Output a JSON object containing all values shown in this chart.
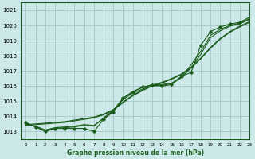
{
  "title": "Graphe pression niveau de la mer (hPa)",
  "bg_color": "#cce8e8",
  "grid_color": "#aacccc",
  "line_color": "#1a5c1a",
  "xlim": [
    -0.5,
    23
  ],
  "ylim": [
    1012.5,
    1021.5
  ],
  "yticks": [
    1013,
    1014,
    1015,
    1016,
    1017,
    1018,
    1019,
    1020,
    1021
  ],
  "xticks": [
    0,
    1,
    2,
    3,
    4,
    5,
    6,
    7,
    8,
    9,
    10,
    11,
    12,
    13,
    14,
    15,
    16,
    17,
    18,
    19,
    20,
    21,
    22,
    23
  ],
  "hours": [
    0,
    1,
    2,
    3,
    4,
    5,
    6,
    7,
    8,
    9,
    10,
    11,
    12,
    13,
    14,
    15,
    16,
    17,
    18,
    19,
    20,
    21,
    22,
    23
  ],
  "pressure_main": [
    1013.6,
    1013.3,
    1013.0,
    1013.2,
    1013.2,
    1013.2,
    1013.2,
    1013.0,
    1013.8,
    1014.3,
    1015.2,
    1015.6,
    1015.95,
    1016.05,
    1016.0,
    1016.1,
    1016.65,
    1016.9,
    1018.7,
    1019.6,
    1019.9,
    1020.1,
    1020.2,
    1020.55
  ],
  "pressure_line1": [
    1013.5,
    1013.35,
    1013.1,
    1013.25,
    1013.3,
    1013.35,
    1013.45,
    1013.4,
    1013.85,
    1014.35,
    1015.1,
    1015.55,
    1015.8,
    1016.0,
    1016.05,
    1016.15,
    1016.55,
    1017.2,
    1018.1,
    1019.2,
    1019.65,
    1019.95,
    1020.1,
    1020.4
  ],
  "pressure_line2": [
    1013.55,
    1013.3,
    1013.05,
    1013.2,
    1013.25,
    1013.3,
    1013.4,
    1013.35,
    1013.9,
    1014.4,
    1015.2,
    1015.65,
    1015.9,
    1016.1,
    1016.1,
    1016.2,
    1016.6,
    1017.4,
    1018.3,
    1019.35,
    1019.75,
    1020.0,
    1020.15,
    1020.45
  ],
  "pressure_straight1": [
    1013.4,
    1013.45,
    1013.5,
    1013.55,
    1013.6,
    1013.7,
    1013.8,
    1013.9,
    1014.1,
    1014.4,
    1014.9,
    1015.35,
    1015.7,
    1016.0,
    1016.2,
    1016.45,
    1016.75,
    1017.2,
    1017.8,
    1018.5,
    1019.1,
    1019.55,
    1019.9,
    1020.2
  ],
  "pressure_straight2": [
    1013.45,
    1013.5,
    1013.55,
    1013.6,
    1013.65,
    1013.75,
    1013.85,
    1013.95,
    1014.15,
    1014.45,
    1014.95,
    1015.4,
    1015.75,
    1016.05,
    1016.25,
    1016.5,
    1016.8,
    1017.25,
    1017.85,
    1018.55,
    1019.15,
    1019.6,
    1019.95,
    1020.25
  ]
}
